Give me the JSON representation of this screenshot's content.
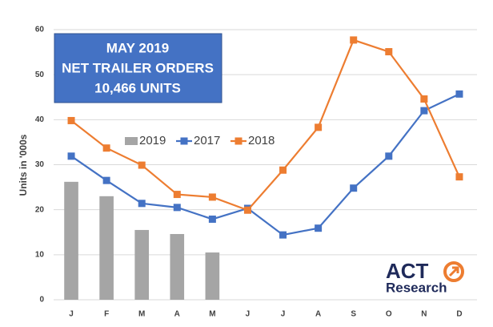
{
  "chart_data": {
    "type": "combo",
    "annotation": [
      "MAY 2019",
      "NET TRAILER ORDERS",
      "10,466 UNITS"
    ],
    "y_label": "Units in '000s",
    "categories": [
      "J",
      "F",
      "M",
      "A",
      "M",
      "J",
      "J",
      "A",
      "S",
      "O",
      "N",
      "D"
    ],
    "series": [
      {
        "name": "2019",
        "type": "bar",
        "color": "#a5a5a5",
        "values": [
          26.2,
          23,
          15.5,
          14.6,
          10.5,
          null,
          null,
          null,
          null,
          null,
          null,
          null
        ]
      },
      {
        "name": "2017",
        "type": "line",
        "color": "#4472c4",
        "values": [
          31.9,
          26.5,
          21.4,
          20.5,
          17.9,
          20.3,
          14.4,
          15.9,
          24.8,
          31.9,
          42,
          45.7
        ]
      },
      {
        "name": "2018",
        "type": "line",
        "color": "#ed7d31",
        "values": [
          39.8,
          33.7,
          29.9,
          23.4,
          22.8,
          19.9,
          28.8,
          38.3,
          57.7,
          55.1,
          44.6,
          27.3
        ]
      }
    ],
    "ylim": [
      0,
      60
    ],
    "yticks": [
      0,
      10,
      20,
      30,
      40,
      50,
      60
    ],
    "grid": true
  },
  "logo": {
    "text": "ACT",
    "subtext": "Research"
  }
}
